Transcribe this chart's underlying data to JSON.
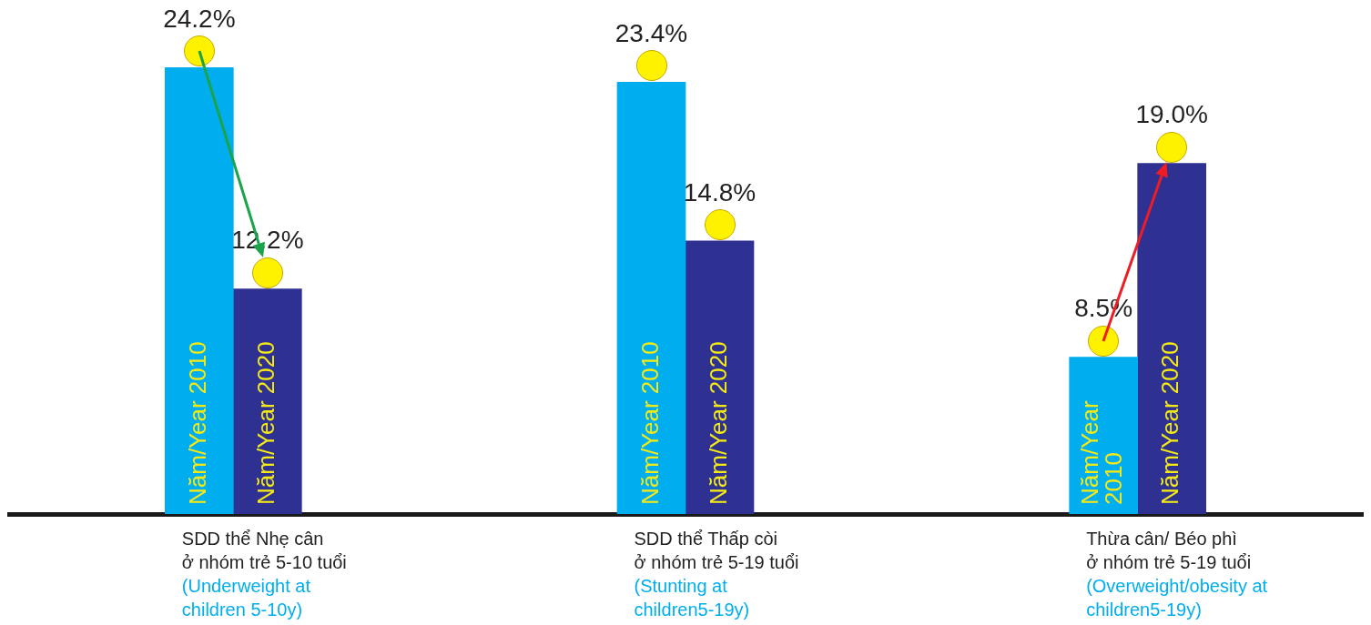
{
  "chart_data": {
    "type": "bar",
    "categories": [
      "SDD thể Nhẹ cân\nở nhóm trẻ 5-10 tuổi\n(Underweight at\nchildren 5-10y)",
      "SDD thể Thấp còi\nở nhóm trẻ 5-19 tuổi\n(Stunting at\nchildren5-19y)",
      "Thừa cân/ Béo phì\nở nhóm trẻ 5-19 tuổi\n(Overweight/obesity at\nchildren5-19y)"
    ],
    "series": [
      {
        "name": "Năm/Year 2010",
        "color": "#00aeef",
        "values": [
          24.2,
          23.4,
          8.5
        ],
        "value_labels": [
          "24.2%",
          "23.4%",
          "8.5%"
        ]
      },
      {
        "name": "Năm/Year 2020",
        "color": "#2e3192",
        "values": [
          12.2,
          14.8,
          19.0
        ],
        "value_labels": [
          "12.2%",
          "14.8%",
          "19.0%"
        ]
      }
    ],
    "marker": "circle"
  }
}
